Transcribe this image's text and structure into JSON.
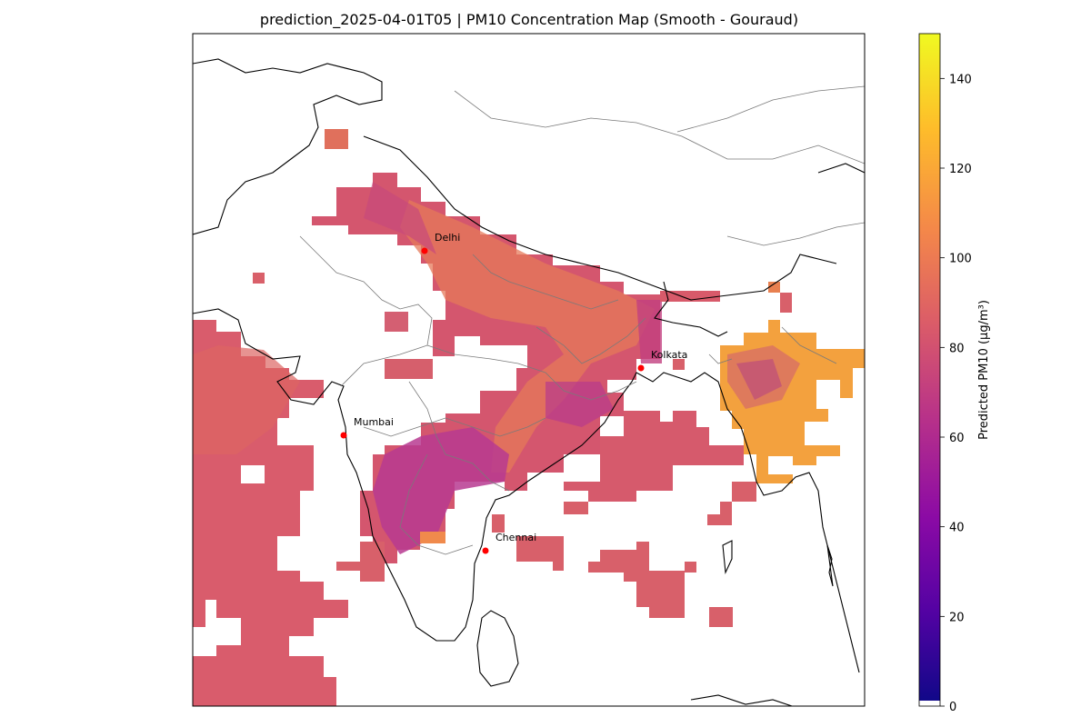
{
  "title": "prediction_2025-04-01T05 | PM10 Concentration Map (Smooth - Gouraud)",
  "colorbar": {
    "label": "Predicted PM10 (µg/m³)",
    "ticks": [
      "0",
      "20",
      "40",
      "60",
      "80",
      "100",
      "120",
      "140"
    ],
    "min": 0,
    "max": 150,
    "colormap": "plasma",
    "stops": [
      "#0d0887",
      "#5302a3",
      "#8b0aa5",
      "#b83289",
      "#db5c68",
      "#f48849",
      "#febd2a",
      "#f0f921"
    ]
  },
  "cities": [
    {
      "name": "Delhi"
    },
    {
      "name": "Kolkata"
    },
    {
      "name": "Mumbai"
    },
    {
      "name": "Chennai"
    }
  ],
  "colors": {
    "city_marker": "#ff0000",
    "border": "#000000",
    "state_border": "#7a7a7a"
  }
}
